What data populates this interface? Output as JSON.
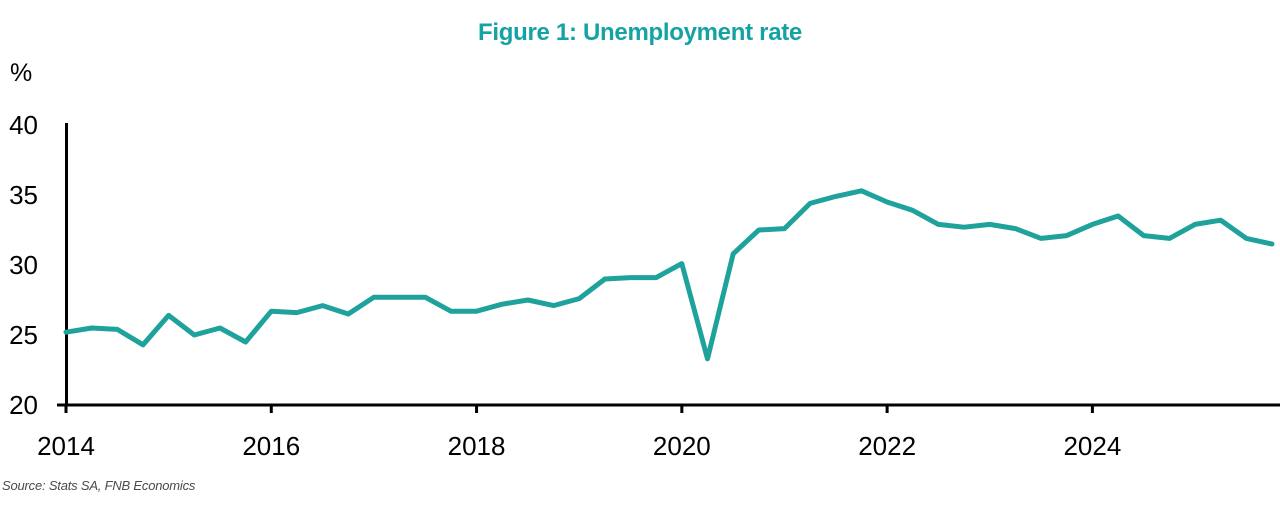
{
  "header": {
    "title": "Figure 1: Unemployment rate"
  },
  "footer": {
    "source": "Source: Stats SA, FNB Economics"
  },
  "colors": {
    "line": "#1fa29c",
    "title": "#14a2a4",
    "axis": "#000000",
    "tick_text": "#000000",
    "source_text": "#4a4a4a"
  },
  "chart_data": {
    "type": "line",
    "title": "Figure 1: Unemployment rate",
    "xlabel": "",
    "ylabel": "%",
    "ylim": [
      20,
      40
    ],
    "y_ticks": [
      20,
      25,
      30,
      35,
      40
    ],
    "x_tick_labels": [
      "2014",
      "2016",
      "2018",
      "2020",
      "2022",
      "2024"
    ],
    "x_tick_interval_quarters": 8,
    "grid": false,
    "legend": "none",
    "frequency": "quarterly",
    "x": [
      "2014Q1",
      "2014Q2",
      "2014Q3",
      "2014Q4",
      "2015Q1",
      "2015Q2",
      "2015Q3",
      "2015Q4",
      "2016Q1",
      "2016Q2",
      "2016Q3",
      "2016Q4",
      "2017Q1",
      "2017Q2",
      "2017Q3",
      "2017Q4",
      "2018Q1",
      "2018Q2",
      "2018Q3",
      "2018Q4",
      "2019Q1",
      "2019Q2",
      "2019Q3",
      "2019Q4",
      "2020Q1",
      "2020Q2",
      "2020Q3",
      "2020Q4",
      "2021Q1",
      "2021Q2",
      "2021Q3",
      "2021Q4",
      "2022Q1",
      "2022Q2",
      "2022Q3",
      "2022Q4",
      "2023Q1",
      "2023Q2",
      "2023Q3",
      "2023Q4",
      "2024Q1",
      "2024Q2",
      "2024Q3",
      "2024Q4",
      "2025Q1",
      "2025Q2",
      "2025Q3",
      "2025Q4"
    ],
    "series": [
      {
        "name": "Unemployment rate (%)",
        "values": [
          25.2,
          25.5,
          25.4,
          24.3,
          26.4,
          25.0,
          25.5,
          24.5,
          26.7,
          26.6,
          27.1,
          26.5,
          27.7,
          27.7,
          27.7,
          26.7,
          26.7,
          27.2,
          27.5,
          27.1,
          27.6,
          29.0,
          29.1,
          29.1,
          30.1,
          23.3,
          30.8,
          32.5,
          32.6,
          34.4,
          34.9,
          35.3,
          34.5,
          33.9,
          32.9,
          32.7,
          32.9,
          32.6,
          31.9,
          32.1,
          32.9,
          33.5,
          32.1,
          31.9,
          32.9,
          33.2,
          31.9,
          31.5
        ]
      }
    ]
  }
}
